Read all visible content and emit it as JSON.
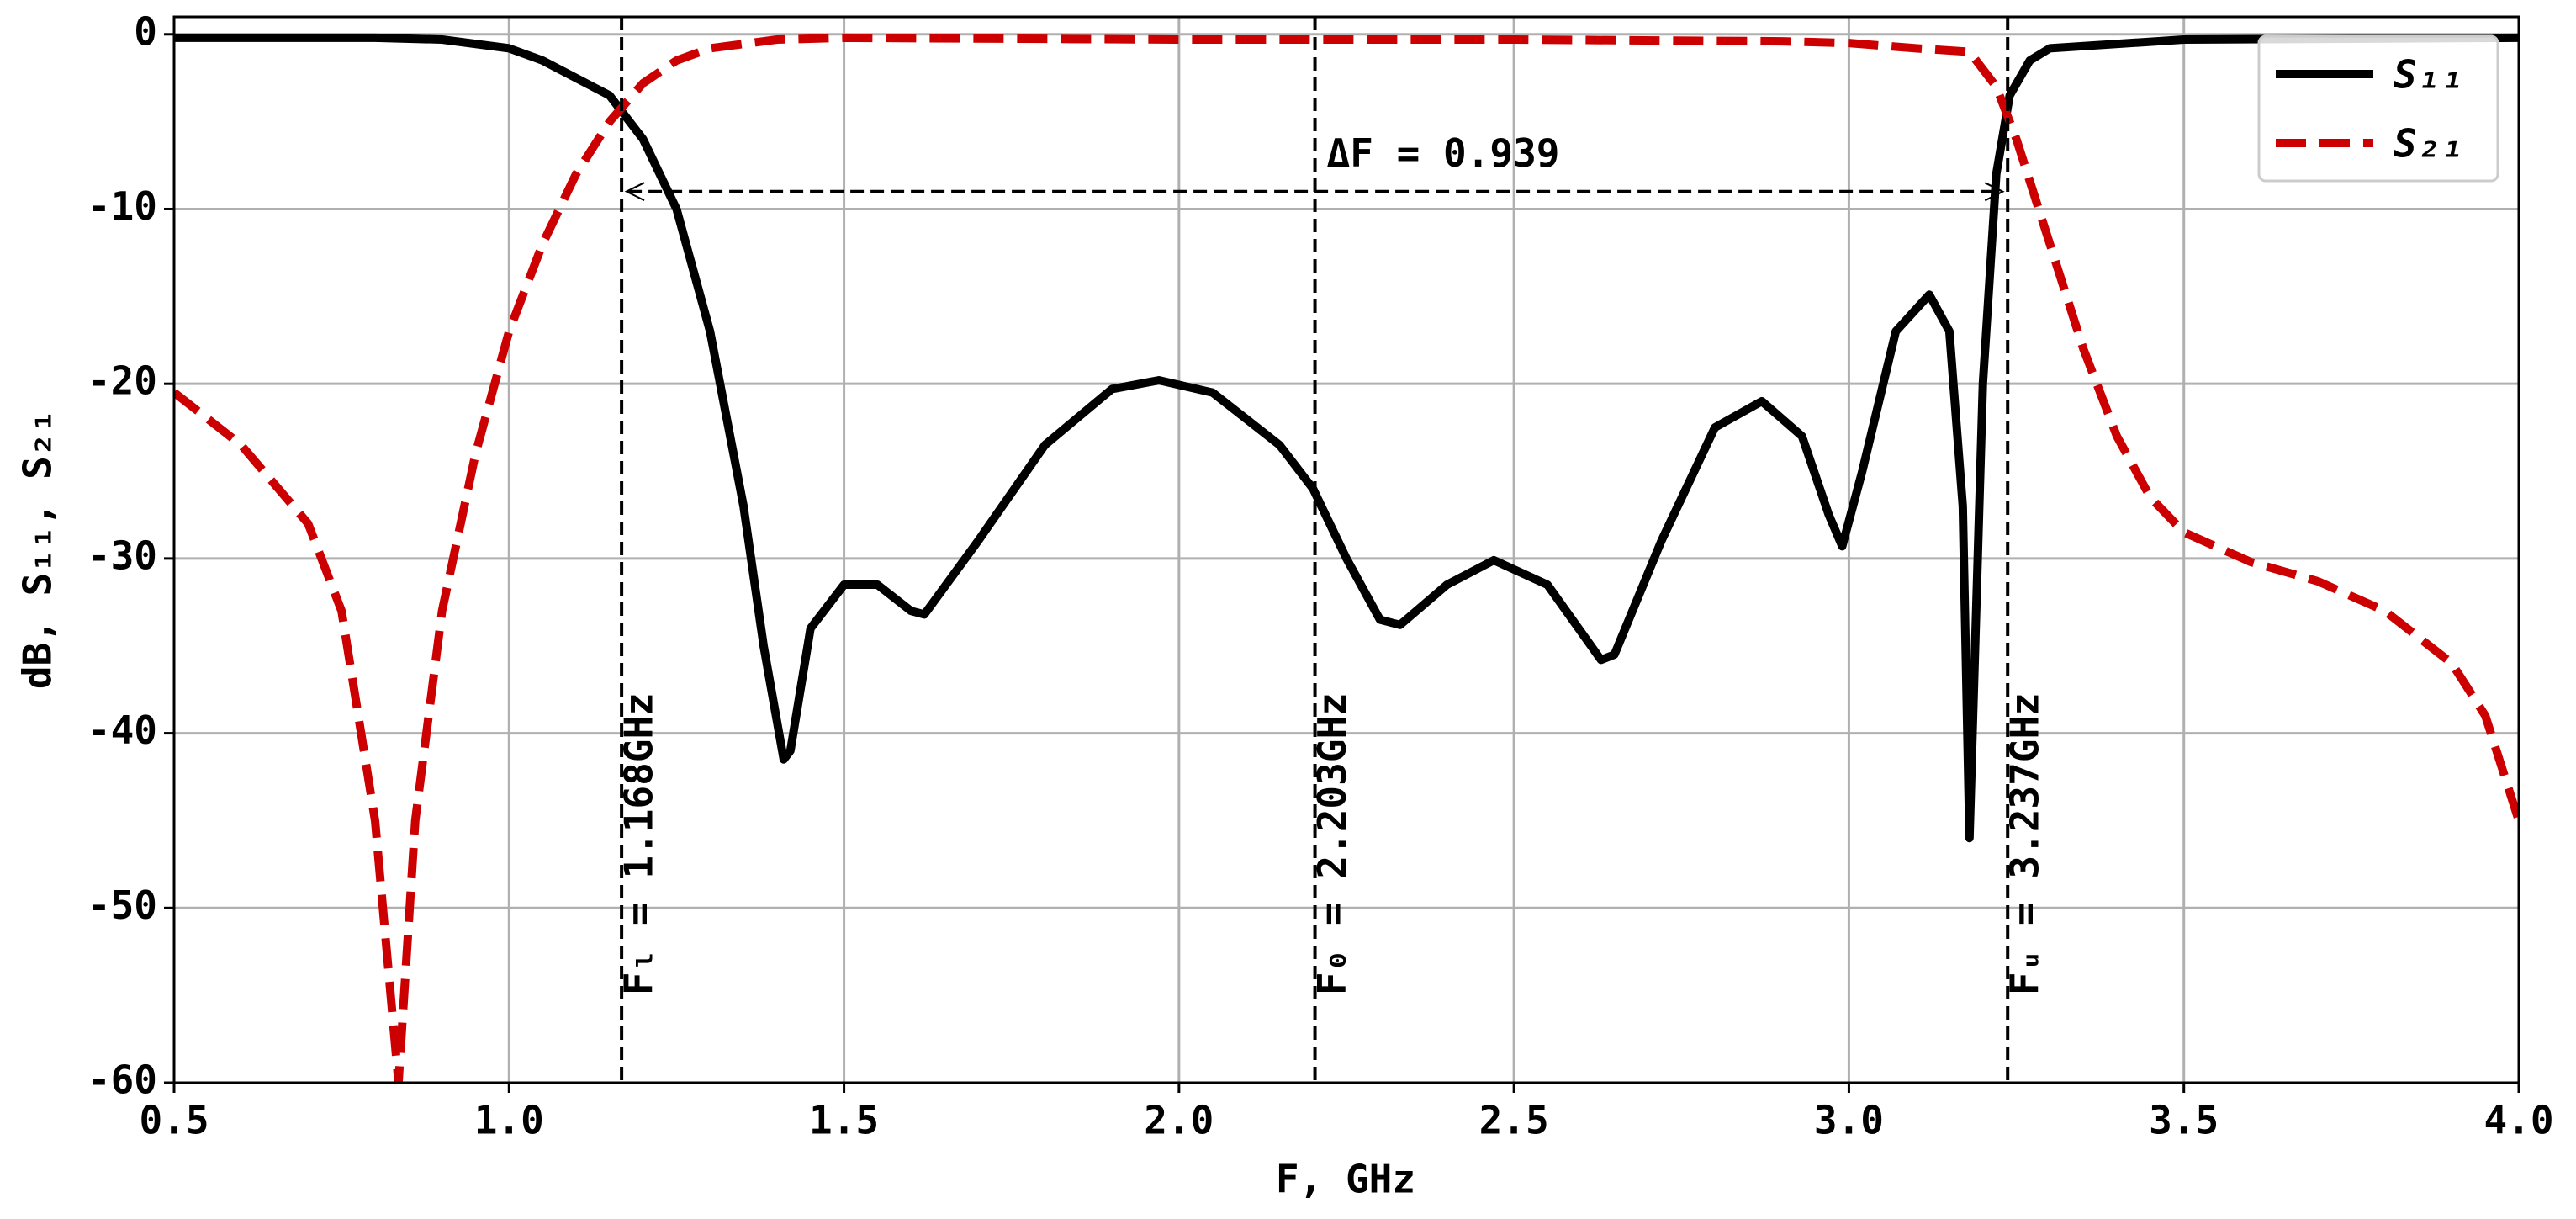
{
  "chart_data": {
    "type": "line",
    "xlabel": "F, GHz",
    "ylabel": "dB, S₁₁, S₂₁",
    "xlim": [
      0.5,
      4.0
    ],
    "ylim": [
      -60,
      1
    ],
    "xticks": [
      0.5,
      {
        "value": 1,
        "label": "1.0"
      },
      1.5,
      {
        "value": 2,
        "label": "2.0"
      },
      2.5,
      {
        "value": 3,
        "label": "3.0"
      },
      3.5,
      {
        "value": 4,
        "label": "4.0"
      }
    ],
    "yticks": [
      0,
      -10,
      -20,
      -30,
      -40,
      -50,
      -60
    ],
    "grid": true,
    "legend": "upper right",
    "series": [
      {
        "name": "S₁₁",
        "color": "#000000",
        "style": "solid",
        "x": [
          0.5,
          0.8,
          0.9,
          1.0,
          1.05,
          1.1,
          1.15,
          1.2,
          1.25,
          1.3,
          1.35,
          1.38,
          1.41,
          1.42,
          1.45,
          1.5,
          1.55,
          1.6,
          1.62,
          1.7,
          1.8,
          1.9,
          1.97,
          2.05,
          2.15,
          2.2,
          2.25,
          2.3,
          2.33,
          2.4,
          2.47,
          2.55,
          2.63,
          2.65,
          2.72,
          2.8,
          2.87,
          2.93,
          2.97,
          2.99,
          3.02,
          3.07,
          3.12,
          3.15,
          3.17,
          3.18,
          3.19,
          3.2,
          3.22,
          3.24,
          3.27,
          3.3,
          3.5,
          4.0
        ],
        "values": [
          -0.2,
          -0.2,
          -0.3,
          -0.8,
          -1.5,
          -2.5,
          -3.5,
          -6,
          -10,
          -17,
          -27,
          -35,
          -41.5,
          -41,
          -34,
          -31.5,
          -31.5,
          -33,
          -33.2,
          -29,
          -23.5,
          -20.3,
          -19.8,
          -20.5,
          -23.5,
          -26,
          -30,
          -33.5,
          -33.8,
          -31.5,
          -30.1,
          -31.5,
          -35.8,
          -35.5,
          -29,
          -22.5,
          -21,
          -23,
          -27.5,
          -29.3,
          -25,
          -17,
          -14.9,
          -17,
          -27,
          -46,
          -33,
          -20,
          -8,
          -3.5,
          -1.5,
          -0.8,
          -0.3,
          -0.2
        ]
      },
      {
        "name": "S₂₁",
        "color": "#cc0000",
        "style": "dashed",
        "x": [
          0.5,
          0.6,
          0.7,
          0.75,
          0.8,
          0.835,
          0.86,
          0.9,
          0.95,
          1.0,
          1.05,
          1.1,
          1.15,
          1.2,
          1.25,
          1.3,
          1.4,
          1.5,
          2.0,
          2.5,
          2.9,
          3.0,
          3.1,
          3.18,
          3.22,
          3.25,
          3.3,
          3.35,
          3.4,
          3.45,
          3.5,
          3.6,
          3.7,
          3.8,
          3.9,
          3.95,
          4.0
        ],
        "values": [
          -20.5,
          -23.5,
          -28,
          -33,
          -45,
          -60,
          -45,
          -33,
          -24,
          -17,
          -12,
          -8,
          -5,
          -2.8,
          -1.5,
          -0.8,
          -0.3,
          -0.2,
          -0.3,
          -0.3,
          -0.4,
          -0.5,
          -0.8,
          -1,
          -3,
          -6,
          -12,
          -18,
          -23,
          -26.5,
          -28.5,
          -30.2,
          -31.3,
          -33,
          -36,
          -39,
          -45
        ]
      }
    ],
    "markers": [
      {
        "x": 1.168,
        "label": "Fₗ = 1.168GHz"
      },
      {
        "x": 2.203,
        "label": "F₀ = 2.203GHz"
      },
      {
        "x": 3.237,
        "label": "Fᵤ = 3.237GHz"
      }
    ],
    "bandwidth": {
      "y": -9,
      "label": "ΔF = 0.939"
    }
  }
}
